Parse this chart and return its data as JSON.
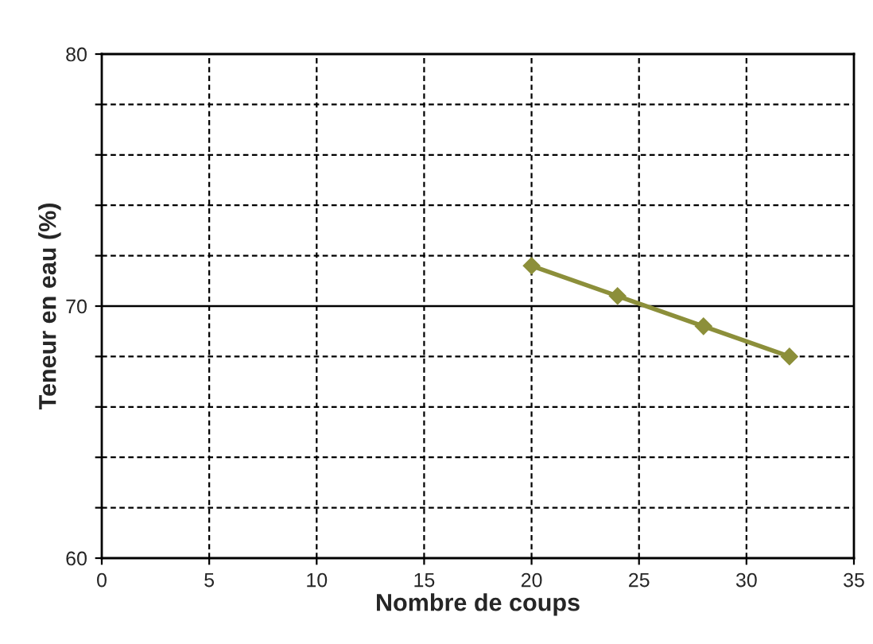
{
  "chart_data": {
    "type": "line",
    "xlabel": "Nombre de coups",
    "ylabel": "Teneur en eau (%)",
    "x": [
      20,
      24,
      28,
      32
    ],
    "series": [
      {
        "color": "#8c8f3a",
        "values": [
          71.6,
          70.4,
          69.2,
          68.0
        ]
      }
    ],
    "marker": "diamond",
    "ref_lines": [
      {
        "axis": "y",
        "value": 70,
        "color": "#000000",
        "line_style": "solid"
      }
    ],
    "xlim": [
      0,
      35
    ],
    "xticks": [
      0,
      5,
      10,
      15,
      20,
      25,
      30,
      35
    ],
    "ylim": [
      60,
      80
    ],
    "yticks": [
      60,
      {
        "value": 62,
        "label": null
      },
      {
        "value": 64,
        "label": null
      },
      {
        "value": 66,
        "label": null
      },
      {
        "value": 68,
        "label": null
      },
      70,
      {
        "value": 72,
        "label": null
      },
      {
        "value": 74,
        "label": null
      },
      {
        "value": 76,
        "label": null
      },
      {
        "value": 78,
        "label": null
      },
      80
    ],
    "grid": true
  }
}
